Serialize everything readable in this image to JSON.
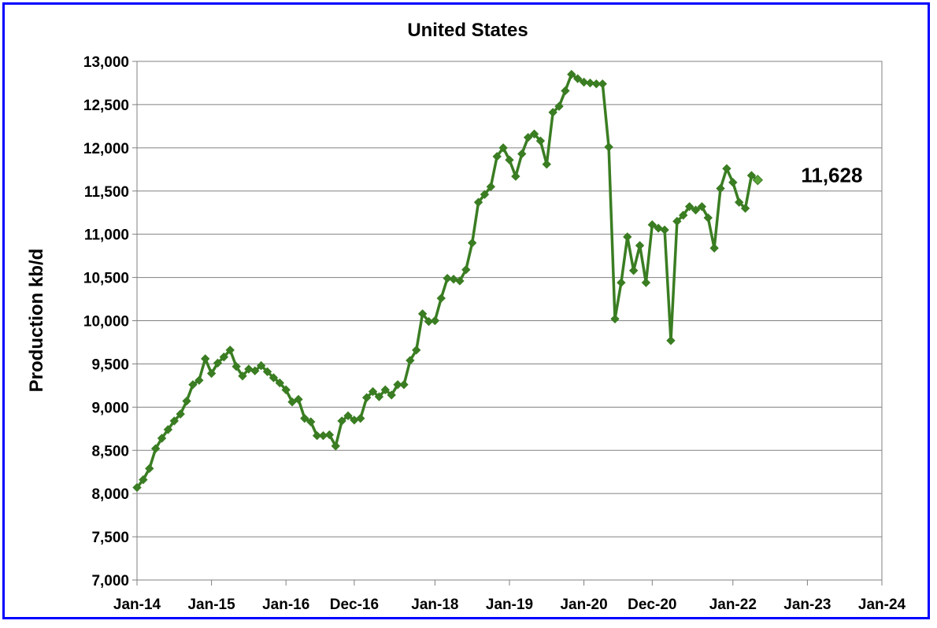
{
  "chart_data": {
    "type": "line",
    "title": "United States",
    "xlabel": "",
    "ylabel": "Production kb/d",
    "ylim": [
      7000,
      13000
    ],
    "ytick_step": 500,
    "y_ticks": [
      "7,000",
      "7,500",
      "8,000",
      "8,500",
      "9,000",
      "9,500",
      "10,000",
      "10,500",
      "11,000",
      "11,500",
      "12,000",
      "12,500",
      "13,000"
    ],
    "x_start": "2014-01",
    "x_ticks": [
      {
        "label": "Jan-14",
        "month_index": 0
      },
      {
        "label": "Jan-15",
        "month_index": 12
      },
      {
        "label": "Jan-16",
        "month_index": 24
      },
      {
        "label": "Dec-16",
        "month_index": 35
      },
      {
        "label": "Jan-18",
        "month_index": 48
      },
      {
        "label": "Jan-19",
        "month_index": 60
      },
      {
        "label": "Jan-20",
        "month_index": 72
      },
      {
        "label": "Dec-20",
        "month_index": 83
      },
      {
        "label": "Jan-22",
        "month_index": 96
      },
      {
        "label": "Jan-23",
        "month_index": 108
      },
      {
        "label": "Jan-24",
        "month_index": 120
      }
    ],
    "grid": true,
    "legend": "none",
    "series": [
      {
        "color": "#3a7d22",
        "marker": "diamond",
        "values": [
          8070,
          8160,
          8290,
          8520,
          8640,
          8740,
          8840,
          8920,
          9070,
          9260,
          9310,
          9560,
          9390,
          9510,
          9580,
          9660,
          9470,
          9360,
          9440,
          9420,
          9480,
          9410,
          9340,
          9280,
          9200,
          9060,
          9090,
          8870,
          8830,
          8670,
          8670,
          8680,
          8550,
          8840,
          8900,
          8850,
          8870,
          9110,
          9180,
          9120,
          9200,
          9140,
          9260,
          9260,
          9540,
          9660,
          10080,
          9990,
          10000,
          10260,
          10490,
          10480,
          10460,
          10590,
          10900,
          11370,
          11460,
          11550,
          11900,
          12000,
          11860,
          11670,
          11930,
          12120,
          12160,
          12080,
          11810,
          12410,
          12480,
          12660,
          12850,
          12800,
          12760,
          12750,
          12740,
          12740,
          12010,
          10020,
          10440,
          10970,
          10580,
          10870,
          10440,
          11110,
          11070,
          11050,
          9770,
          11150,
          11220,
          11320,
          11280,
          11320,
          11190,
          10840,
          11530,
          11760,
          11600,
          11370,
          11300,
          11680,
          11628
        ]
      }
    ],
    "annotations": [
      {
        "text": "11,628",
        "attached_month_index": 100
      }
    ]
  }
}
